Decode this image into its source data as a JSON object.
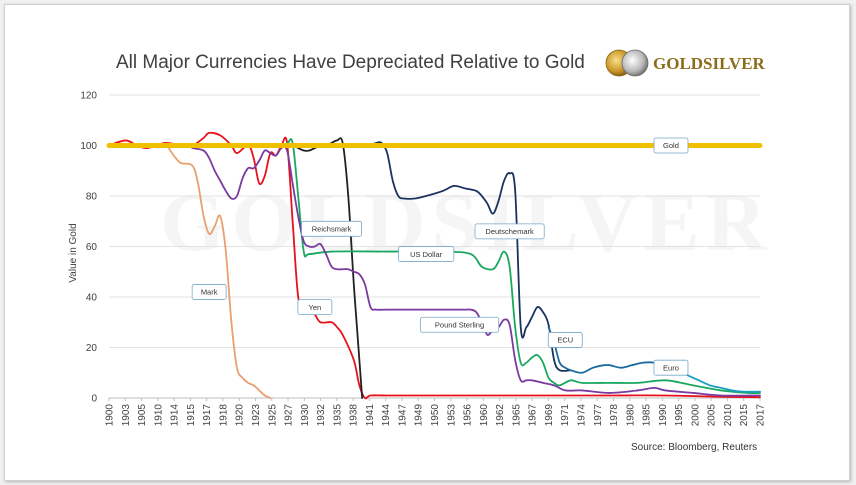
{
  "chart_data": {
    "type": "line",
    "title": "All Major Currencies Have Depreciated Relative to Gold",
    "ylabel": "Value in Gold",
    "ylim": [
      0,
      120
    ],
    "yticks": [
      0,
      20,
      40,
      60,
      80,
      100,
      120
    ],
    "xlim": [
      1900,
      2017
    ],
    "xticks": [
      "1900",
      "1903",
      "1905",
      "1910",
      "1914",
      "1915",
      "1917",
      "1918",
      "1920",
      "1923",
      "1925",
      "1927",
      "1930",
      "1932",
      "1935",
      "1938",
      "1941",
      "1944",
      "1947",
      "1949",
      "1950",
      "1953",
      "1956",
      "1960",
      "1962",
      "1965",
      "1967",
      "1969",
      "1971",
      "1974",
      "1977",
      "1978",
      "1980",
      "1985",
      "1990",
      "1995",
      "2000",
      "2005",
      "2010",
      "2015",
      "2017"
    ],
    "grid": true,
    "source": "Source: Bloomberg, Reuters",
    "brand": "GOLDSILVER",
    "watermark": "GOLDSILVER",
    "series": [
      {
        "name": "Mark",
        "color": "#e8a070",
        "label_at": [
          1918,
          42
        ],
        "points": [
          [
            1900,
            100
          ],
          [
            1905,
            100
          ],
          [
            1910,
            100
          ],
          [
            1911,
            98
          ],
          [
            1912,
            95
          ],
          [
            1913,
            93
          ],
          [
            1915,
            92
          ],
          [
            1916,
            85
          ],
          [
            1917,
            72
          ],
          [
            1918,
            65
          ],
          [
            1919,
            68
          ],
          [
            1920,
            72
          ],
          [
            1921,
            58
          ],
          [
            1922,
            30
          ],
          [
            1923,
            12
          ],
          [
            1924,
            8
          ],
          [
            1925,
            6
          ],
          [
            1926,
            5
          ],
          [
            1927,
            3
          ],
          [
            1928,
            1
          ],
          [
            1929,
            0
          ]
        ]
      },
      {
        "name": "Yen",
        "color": "#e8101a",
        "label_at": [
          1937,
          36
        ],
        "points": [
          [
            1900,
            100
          ],
          [
            1903,
            102
          ],
          [
            1905,
            100
          ],
          [
            1907,
            99
          ],
          [
            1910,
            101
          ],
          [
            1913,
            100
          ],
          [
            1915,
            100
          ],
          [
            1917,
            103
          ],
          [
            1918,
            105
          ],
          [
            1920,
            104
          ],
          [
            1922,
            100
          ],
          [
            1923,
            97
          ],
          [
            1925,
            100
          ],
          [
            1926,
            95
          ],
          [
            1927,
            85
          ],
          [
            1928,
            88
          ],
          [
            1929,
            97
          ],
          [
            1930,
            96
          ],
          [
            1931,
            100
          ],
          [
            1932,
            101
          ],
          [
            1933,
            70
          ],
          [
            1934,
            40
          ],
          [
            1935,
            38
          ],
          [
            1936,
            34
          ],
          [
            1937,
            33
          ],
          [
            1938,
            30
          ],
          [
            1940,
            30
          ],
          [
            1941,
            28
          ],
          [
            1942,
            25
          ],
          [
            1944,
            15
          ],
          [
            1945,
            5
          ],
          [
            1946,
            0
          ],
          [
            1947,
            1
          ],
          [
            1950,
            1
          ],
          [
            1960,
            1
          ],
          [
            1970,
            1
          ],
          [
            1980,
            1
          ],
          [
            1990,
            1
          ],
          [
            2000,
            1
          ],
          [
            2010,
            0.5
          ],
          [
            2017,
            0.3
          ]
        ]
      },
      {
        "name": "Reichsmark",
        "color": "#222222",
        "label_at": [
          1940,
          67
        ],
        "points": [
          [
            1900,
            100
          ],
          [
            1932,
            100
          ],
          [
            1933,
            100
          ],
          [
            1934,
            99
          ],
          [
            1935,
            98
          ],
          [
            1936,
            98
          ],
          [
            1937,
            99
          ],
          [
            1938,
            100
          ],
          [
            1939,
            100
          ],
          [
            1940,
            101
          ],
          [
            1941,
            102
          ],
          [
            1942,
            101
          ],
          [
            1943,
            80
          ],
          [
            1944,
            45
          ],
          [
            1945,
            15
          ],
          [
            1945.5,
            0
          ]
        ]
      },
      {
        "name": "US Dollar",
        "color": "#1aa860",
        "label_at": [
          1957,
          57
        ],
        "points": [
          [
            1900,
            100
          ],
          [
            1930,
            100
          ],
          [
            1932,
            101
          ],
          [
            1933,
            101
          ],
          [
            1934,
            80
          ],
          [
            1935,
            58
          ],
          [
            1936,
            57
          ],
          [
            1940,
            58
          ],
          [
            1950,
            58
          ],
          [
            1960,
            58
          ],
          [
            1965,
            57
          ],
          [
            1967,
            52
          ],
          [
            1969,
            51
          ],
          [
            1970,
            54
          ],
          [
            1971,
            58
          ],
          [
            1972,
            52
          ],
          [
            1973,
            28
          ],
          [
            1974,
            14
          ],
          [
            1975,
            14
          ],
          [
            1976,
            16
          ],
          [
            1977,
            17
          ],
          [
            1978,
            14
          ],
          [
            1979,
            8
          ],
          [
            1980,
            6
          ],
          [
            1981,
            5
          ],
          [
            1983,
            7
          ],
          [
            1985,
            6
          ],
          [
            1990,
            6
          ],
          [
            1995,
            6
          ],
          [
            2000,
            7
          ],
          [
            2005,
            5
          ],
          [
            2010,
            3
          ],
          [
            2015,
            2
          ],
          [
            2017,
            2
          ]
        ]
      },
      {
        "name": "Deutschemark",
        "color": "#1a3260",
        "label_at": [
          1972,
          66
        ],
        "points": [
          [
            1947,
            100
          ],
          [
            1948,
            101
          ],
          [
            1949,
            101
          ],
          [
            1950,
            97
          ],
          [
            1951,
            86
          ],
          [
            1952,
            80
          ],
          [
            1953,
            79
          ],
          [
            1955,
            79
          ],
          [
            1957,
            80
          ],
          [
            1960,
            82
          ],
          [
            1962,
            84
          ],
          [
            1964,
            83
          ],
          [
            1966,
            82
          ],
          [
            1967,
            80
          ],
          [
            1968,
            77
          ],
          [
            1969,
            73
          ],
          [
            1970,
            78
          ],
          [
            1971,
            86
          ],
          [
            1972,
            89
          ],
          [
            1973,
            82
          ],
          [
            1974,
            28
          ],
          [
            1975,
            28
          ],
          [
            1976,
            32
          ],
          [
            1977,
            36
          ],
          [
            1978,
            34
          ],
          [
            1979,
            29
          ],
          [
            1980,
            15
          ],
          [
            1981,
            11
          ],
          [
            1983,
            11
          ]
        ]
      },
      {
        "name": "Pound Sterling",
        "color": "#7a3aa0",
        "label_at": [
          1963,
          29
        ],
        "points": [
          [
            1900,
            100
          ],
          [
            1914,
            100
          ],
          [
            1915,
            99
          ],
          [
            1917,
            98
          ],
          [
            1918,
            95
          ],
          [
            1919,
            90
          ],
          [
            1920,
            86
          ],
          [
            1921,
            82
          ],
          [
            1922,
            79
          ],
          [
            1923,
            80
          ],
          [
            1924,
            87
          ],
          [
            1925,
            91
          ],
          [
            1926,
            91
          ],
          [
            1927,
            94
          ],
          [
            1928,
            98
          ],
          [
            1929,
            97
          ],
          [
            1930,
            96
          ],
          [
            1931,
            99
          ],
          [
            1932,
            98
          ],
          [
            1933,
            85
          ],
          [
            1934,
            72
          ],
          [
            1935,
            62
          ],
          [
            1936,
            60
          ],
          [
            1937,
            60
          ],
          [
            1938,
            61
          ],
          [
            1939,
            57
          ],
          [
            1940,
            52
          ],
          [
            1941,
            51
          ],
          [
            1942,
            51
          ],
          [
            1943,
            51
          ],
          [
            1944,
            50
          ],
          [
            1945,
            49
          ],
          [
            1946,
            45
          ],
          [
            1947,
            36
          ],
          [
            1948,
            35
          ],
          [
            1950,
            35
          ],
          [
            1955,
            35
          ],
          [
            1960,
            35
          ],
          [
            1962,
            35
          ],
          [
            1964,
            35
          ],
          [
            1965,
            35
          ],
          [
            1966,
            34
          ],
          [
            1967,
            30
          ],
          [
            1968,
            25
          ],
          [
            1969,
            27
          ],
          [
            1970,
            28
          ],
          [
            1971,
            31
          ],
          [
            1972,
            29
          ],
          [
            1973,
            15
          ],
          [
            1974,
            7
          ],
          [
            1975,
            7
          ],
          [
            1976,
            7
          ],
          [
            1978,
            6
          ],
          [
            1980,
            5
          ],
          [
            1982,
            3
          ],
          [
            1985,
            3
          ],
          [
            1990,
            2
          ],
          [
            1995,
            3
          ],
          [
            1998,
            4
          ],
          [
            2000,
            3
          ],
          [
            2005,
            2
          ],
          [
            2010,
            1
          ],
          [
            2017,
            1
          ]
        ]
      },
      {
        "name": "ECU",
        "color": "#1a6aa0",
        "label_at": [
          1982,
          23
        ],
        "points": [
          [
            1979,
            28
          ],
          [
            1980,
            22
          ],
          [
            1981,
            14
          ],
          [
            1982,
            12
          ],
          [
            1983,
            11
          ],
          [
            1985,
            10
          ],
          [
            1987,
            12
          ],
          [
            1989,
            13
          ],
          [
            1990,
            13
          ],
          [
            1992,
            12
          ],
          [
            1994,
            13
          ],
          [
            1996,
            14
          ],
          [
            1998,
            14
          ],
          [
            1999,
            13
          ]
        ]
      },
      {
        "name": "Euro",
        "color": "#1aa0c0",
        "label_at": [
          2001,
          12
        ],
        "points": [
          [
            1999,
            13
          ],
          [
            2000,
            12
          ],
          [
            2002,
            11
          ],
          [
            2004,
            9
          ],
          [
            2006,
            7
          ],
          [
            2008,
            5
          ],
          [
            2010,
            4
          ],
          [
            2012,
            3
          ],
          [
            2014,
            2.5
          ],
          [
            2017,
            2.5
          ]
        ]
      },
      {
        "name": "Gold",
        "color": "#f0c000",
        "label_at": [
          2001,
          100
        ],
        "points": [
          [
            1900,
            100
          ],
          [
            2017,
            100
          ]
        ]
      }
    ]
  }
}
